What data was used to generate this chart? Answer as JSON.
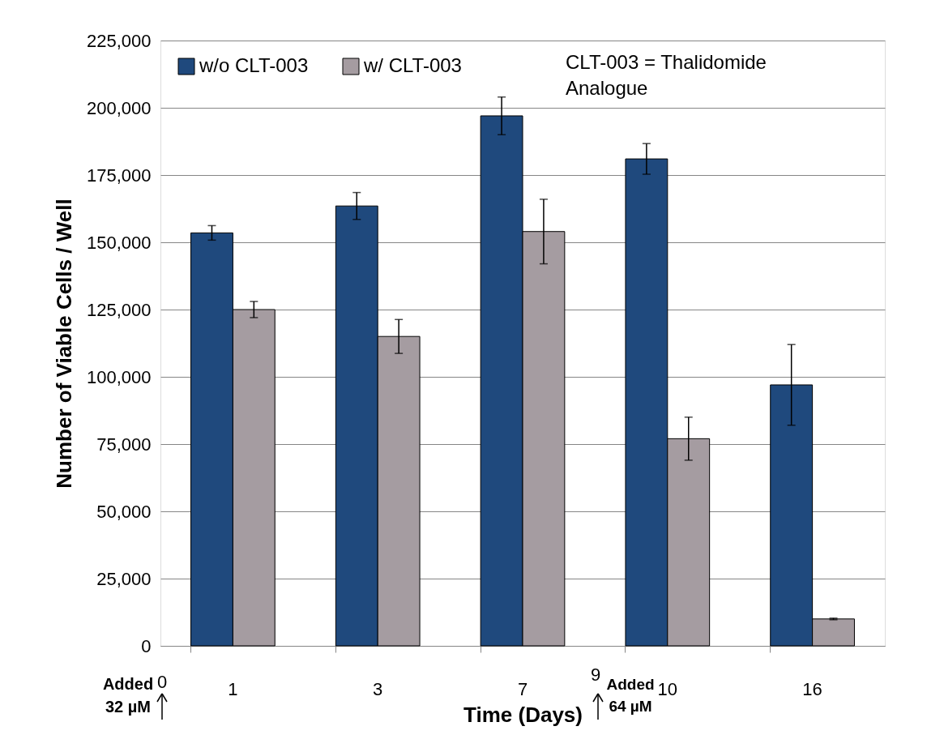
{
  "chart_data": {
    "type": "bar",
    "xlabel": "Time (Days)",
    "ylabel": "Number of Viable Cells / Well",
    "categories": [
      "1",
      "3",
      "7",
      "10",
      "16"
    ],
    "series": [
      {
        "name": "w/o CLT-003",
        "color": "#1f497d",
        "values": [
          153500,
          163500,
          197000,
          181000,
          97000
        ],
        "errors": [
          2700,
          5000,
          7000,
          5700,
          15000
        ]
      },
      {
        "name": "w/ CLT-003",
        "color": "#a59ca1",
        "values": [
          125000,
          115000,
          154000,
          77000,
          10000
        ],
        "errors": [
          3000,
          6300,
          12000,
          8000,
          300
        ]
      }
    ],
    "ylim": [
      0,
      225000
    ],
    "yticks": [
      0,
      {
        "value": 25000,
        "label": "25,000"
      },
      {
        "value": 50000,
        "label": "50,000"
      },
      {
        "value": 75000,
        "label": "75,000"
      },
      {
        "value": 100000,
        "label": "100,000"
      },
      {
        "value": 125000,
        "label": "125,000"
      },
      {
        "value": 150000,
        "label": "150,000"
      },
      {
        "value": 175000,
        "label": "175,000"
      },
      {
        "value": 200000,
        "label": "200,000"
      },
      {
        "value": 225000,
        "label": "225,000"
      }
    ],
    "grid": "y",
    "legend": "top left",
    "annotations": [
      "CLT-003 = Thalidomide\nAnalogue",
      "0",
      "9",
      "Added\n32 µM",
      "Added\n64 µM"
    ]
  }
}
